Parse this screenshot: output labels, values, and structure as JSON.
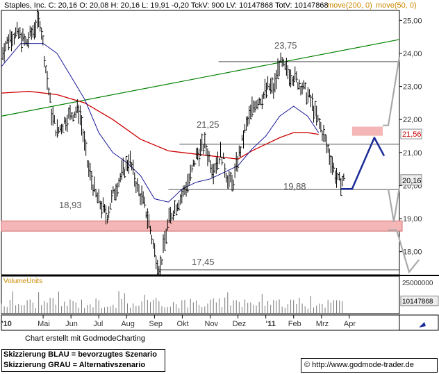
{
  "header": {
    "stock_name": "Staples, Inc.",
    "quote_line": "Staples, Inc. C: 20,16 O: 20,08 H: 20,16 L: 19,91 -0,20 TckV: 900 LV: 10147868 TotV: 10147868",
    "ma200_label": "move(200, 0)",
    "ma50_label": "move(50, 0)",
    "ma200_color": "#cc0000",
    "ma50_color": "#1a1a99"
  },
  "footer": {
    "credit": "Chart erstellt mit GodmodeCharting",
    "legend_blue": "Skizzierung BLAU = bevorzugtes Szenario",
    "legend_gray": "Skizzierung GRAU = Alternativszenario",
    "url": "© http://www.godmode-trader.de"
  },
  "colors": {
    "price_bar": "#000000",
    "ma200": "#cc0000",
    "ma50": "#1a1a99",
    "trendline": "#008000",
    "level_line": "#555555",
    "support_zone": "#f4b6b6",
    "scenario_blue": "#1a2a99",
    "scenario_gray": "#a9a9a9",
    "last_price_box": "#eeeeee",
    "ma200_box": "#ffffff"
  },
  "chart_data": {
    "type": "line",
    "title": "Staples, Inc.",
    "price_axis": {
      "ylim": [
        17.3,
        25.3
      ],
      "ticks": [
        18,
        19,
        20,
        21,
        22,
        23,
        24,
        25
      ],
      "tick_labels": [
        "18,00",
        "19,00",
        "20,00",
        "21,00",
        "22,00",
        "23,00",
        "24,00",
        "25,00"
      ]
    },
    "x_axis": {
      "xlim": [
        0,
        14.3
      ],
      "ticks": [
        0,
        1.5,
        2.5,
        3.5,
        4.5,
        5.5,
        6.5,
        7.5,
        8.5,
        9.5,
        10.5,
        11.5,
        12.5
      ],
      "tick_labels": [
        "'10",
        "Mai",
        "Jun",
        "Jul",
        "Aug",
        "Sep",
        "Okt",
        "Nov",
        "Dez",
        "'11",
        "Feb",
        "Mrz",
        "Apr"
      ]
    },
    "price_path": {
      "x": [
        0,
        0.3,
        0.6,
        0.9,
        1.2,
        1.4,
        1.6,
        1.8,
        2.0,
        2.4,
        2.8,
        3.1,
        3.4,
        3.7,
        3.8,
        4.0,
        4.3,
        4.6,
        4.9,
        5.1,
        5.3,
        5.5,
        5.7,
        5.8,
        6.0,
        6.2,
        6.5,
        6.8,
        7.0,
        7.3,
        7.6,
        7.9,
        8.1,
        8.3,
        8.5,
        8.8,
        9.1,
        9.4,
        9.6,
        9.8,
        10.0,
        10.2,
        10.5,
        10.8,
        11.1,
        11.3,
        11.5,
        11.7,
        11.9,
        12.1,
        12.3
      ],
      "y": [
        24.0,
        24.5,
        24.6,
        24.3,
        24.8,
        25.0,
        23.5,
        22.2,
        21.6,
        22.1,
        22.3,
        20.6,
        19.7,
        19.2,
        19.1,
        19.7,
        20.3,
        20.8,
        19.9,
        19.5,
        18.9,
        18.0,
        17.45,
        18.0,
        18.9,
        19.3,
        19.7,
        20.3,
        20.9,
        21.25,
        20.5,
        21.0,
        20.3,
        20.0,
        20.8,
        21.8,
        22.5,
        22.7,
        23.0,
        22.9,
        23.75,
        23.5,
        23.3,
        23.0,
        22.6,
        22.1,
        21.7,
        21.2,
        20.6,
        20.1,
        20.16
      ]
    },
    "series": [
      {
        "name": "move(200, 0)",
        "x": [
          0,
          1,
          2,
          3,
          4,
          5,
          6,
          7,
          8,
          8.5,
          9,
          10,
          10.5,
          11,
          11.4
        ],
        "y": [
          22.8,
          22.85,
          22.75,
          22.5,
          22.0,
          21.4,
          21.05,
          20.95,
          20.85,
          20.8,
          21.05,
          21.45,
          21.6,
          21.6,
          21.55
        ]
      },
      {
        "name": "move(50, 0)",
        "x": [
          0,
          0.7,
          1.5,
          2.0,
          2.5,
          3.0,
          3.5,
          4.0,
          4.5,
          5.0,
          5.5,
          6.0,
          6.5,
          7.0,
          7.5,
          8.0,
          8.5,
          9.0,
          9.5,
          10.0,
          10.5,
          11.0,
          11.4
        ],
        "y": [
          23.6,
          24.3,
          24.3,
          24.0,
          23.3,
          22.6,
          21.6,
          21.0,
          20.7,
          20.3,
          19.6,
          19.5,
          19.9,
          20.1,
          20.2,
          20.4,
          20.6,
          21.1,
          21.5,
          22.1,
          22.4,
          22.1,
          21.6
        ]
      }
    ],
    "trendline": {
      "x": [
        0,
        14.3
      ],
      "y": [
        22.1,
        24.42
      ]
    },
    "levels": [
      {
        "value": 23.75,
        "label": "23,75",
        "x_start": 7.8,
        "x_end": 14.3
      },
      {
        "value": 21.25,
        "label": "21,25",
        "x_start": 6.4,
        "x_end": 14.3
      },
      {
        "value": 19.88,
        "label": "19,88",
        "x_start": 6.0,
        "x_end": 14.3
      },
      {
        "value": 17.45,
        "label": "17,45",
        "x_start": 5.6,
        "x_end": 14.3
      }
    ],
    "support_zone": {
      "from": 18.62,
      "to": 18.93,
      "label": "18,93"
    },
    "resistance_zone": {
      "from": 21.57,
      "to": 21.72,
      "x_start": 12.6,
      "x_end": 13.7
    },
    "scenario_blue": {
      "x": [
        12.2,
        12.6,
        13.4,
        13.75
      ],
      "y": [
        19.9,
        19.9,
        21.45,
        20.9
      ]
    },
    "scenario_gray": {
      "x": [
        13.7,
        13.9,
        14.3,
        13.9,
        14.1,
        14.3,
        14.3,
        13.9,
        14.2,
        14.4,
        14.5
      ],
      "y": [
        21.82,
        21.82,
        23.9,
        19.9,
        18.9,
        17.3,
        17.3,
        18.65,
        18.65,
        17.3,
        17.5
      ]
    },
    "price_labels": [
      {
        "value": 21.56,
        "label": "21,56"
      },
      {
        "value": 20.16,
        "label": "20,16"
      }
    ],
    "volume": {
      "title": "VolumeUnits",
      "ylim": [
        0,
        30000000
      ],
      "tick_label": "25000000",
      "last_value": 10147868,
      "last_label": "10147868"
    }
  }
}
